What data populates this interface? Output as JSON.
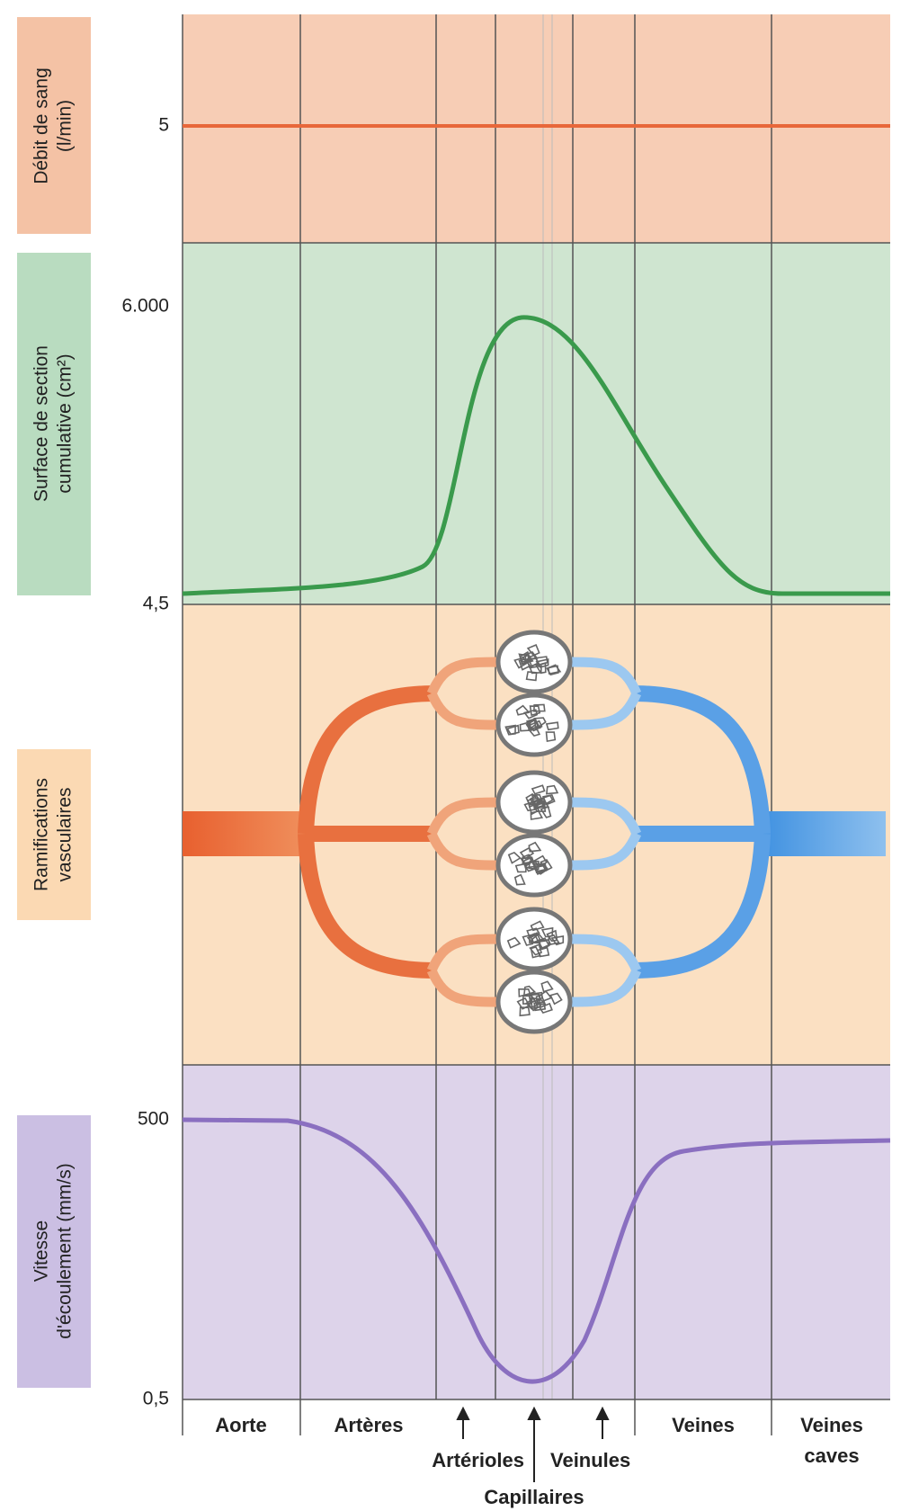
{
  "panels": [
    {
      "label": [
        "Débit de sang",
        "(l/min)"
      ],
      "ticks": [
        "5"
      ]
    },
    {
      "label": [
        "Surface de section",
        "cumulative (cm²)"
      ],
      "ticks": [
        "6.000",
        "4,5"
      ]
    },
    {
      "label": [
        "Ramifications",
        "vasculaires"
      ]
    },
    {
      "label": [
        "Vitesse",
        "d'écoulement (mm/s)"
      ],
      "ticks": [
        "500",
        "0,5"
      ]
    }
  ],
  "segments": [
    [
      "Aorte"
    ],
    [
      "Artères"
    ],
    [
      "Artérioles"
    ],
    [
      "Capillaires"
    ],
    [
      "Veinules"
    ],
    [
      "Veines"
    ],
    [
      "Veines",
      "caves"
    ]
  ]
}
